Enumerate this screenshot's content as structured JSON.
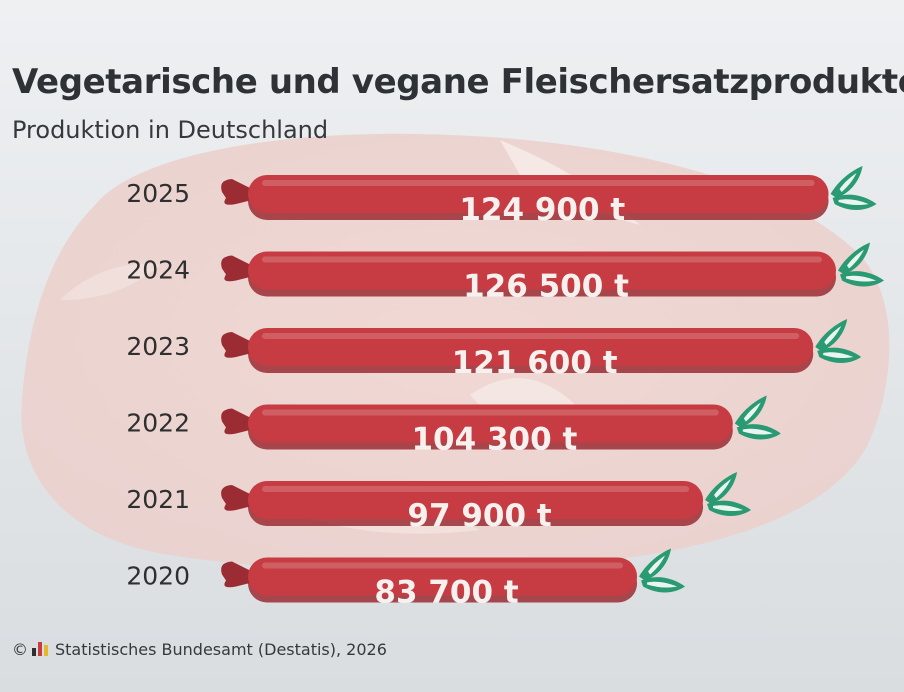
{
  "title": "Vegetarische und vegane Fleischersatzprodukte",
  "subtitle": "Produktion in Deutschland",
  "footer": {
    "copyright_symbol": "©",
    "source": "Statistisches Bundesamt (Destatis), 2026",
    "logo_icon": "destatis-logo-icon"
  },
  "colors": {
    "sausage": "#c63c42",
    "sausage_dark": "#9b2c33",
    "leaf": "#2a9a72",
    "background": "#dfe2e5",
    "meat": "#efd3cf"
  },
  "chart_data": {
    "type": "bar",
    "orientation": "horizontal",
    "mark_style": "sausage",
    "categories": [
      "2025",
      "2024",
      "2023",
      "2022",
      "2021",
      "2020"
    ],
    "values": [
      124900,
      126500,
      121600,
      104300,
      97900,
      83700
    ],
    "value_labels": [
      "124 900 t",
      "126 500 t",
      "121 600 t",
      "104 300 t",
      "97 900 t",
      "83 700 t"
    ],
    "unit": "t",
    "xlim": [
      0,
      126500
    ],
    "grid": false,
    "legend": "none"
  }
}
